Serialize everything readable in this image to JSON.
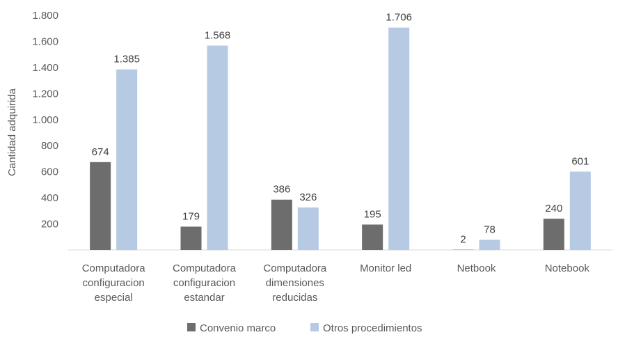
{
  "chart_data": {
    "type": "bar",
    "ylabel": "Cantidad adquirida",
    "ylim": [
      0,
      1800
    ],
    "yticks": [
      200,
      400,
      600,
      800,
      1000,
      1200,
      1400,
      1600,
      1800
    ],
    "ytick_labels": [
      "200",
      "400",
      "600",
      "800",
      "1.000",
      "1.200",
      "1.400",
      "1.600",
      "1.800"
    ],
    "grid": false,
    "legend_position": "bottom",
    "categories": [
      [
        "Computadora",
        "configuracion",
        "especial"
      ],
      [
        "Computadora",
        "configuracion",
        "estandar"
      ],
      [
        "Computadora",
        "dimensiones",
        "reducidas"
      ],
      [
        "Monitor led"
      ],
      [
        "Netbook"
      ],
      [
        "Notebook"
      ]
    ],
    "series": [
      {
        "name": "Convenio marco",
        "color": "#6d6d6d",
        "values": [
          674,
          179,
          386,
          195,
          2,
          240
        ],
        "labels": [
          "674",
          "179",
          "386",
          "195",
          "2",
          "240"
        ]
      },
      {
        "name": "Otros procedimientos",
        "color": "#b7cae3",
        "values": [
          1385,
          1568,
          326,
          1706,
          78,
          601
        ],
        "labels": [
          "1.385",
          "1.568",
          "326",
          "1.706",
          "78",
          "601"
        ]
      }
    ]
  }
}
